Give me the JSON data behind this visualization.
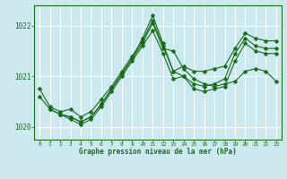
{
  "title": "Graphe pression niveau de la mer (hPa)",
  "bg_color": "#cce9f0",
  "grid_color": "#ffffff",
  "line_color": "#1a6b1a",
  "xlim": [
    -0.5,
    23.5
  ],
  "ylim": [
    1019.75,
    1022.4
  ],
  "yticks": [
    1020,
    1021,
    1022
  ],
  "xticks": [
    0,
    1,
    2,
    3,
    4,
    5,
    6,
    7,
    8,
    9,
    10,
    11,
    12,
    13,
    14,
    15,
    16,
    17,
    18,
    19,
    20,
    21,
    22,
    23
  ],
  "lines": [
    {
      "x": [
        0,
        1,
        2,
        3,
        4,
        5,
        6,
        7,
        8,
        9,
        10,
        11,
        12,
        13,
        14,
        15,
        16,
        17,
        18,
        19,
        20,
        21,
        22,
        23
      ],
      "y": [
        1020.75,
        1020.4,
        1020.3,
        1020.35,
        1020.2,
        1020.3,
        1020.55,
        1020.8,
        1021.1,
        1021.4,
        1021.7,
        1022.1,
        1021.6,
        1021.1,
        1021.2,
        1021.1,
        1021.1,
        1021.15,
        1021.2,
        1021.55,
        1021.85,
        1021.75,
        1021.7,
        1021.7
      ]
    },
    {
      "x": [
        0,
        1,
        2,
        3,
        4,
        5,
        6,
        7,
        8,
        9,
        10,
        11,
        12,
        13,
        14,
        15,
        16,
        17,
        18,
        19,
        20,
        21,
        22,
        23
      ],
      "y": [
        1020.6,
        1020.35,
        1020.25,
        1020.2,
        1020.1,
        1020.2,
        1020.45,
        1020.75,
        1021.05,
        1021.35,
        1021.75,
        1022.2,
        1021.65,
        1021.1,
        1021.0,
        1020.85,
        1020.8,
        1020.85,
        1020.95,
        1021.45,
        1021.75,
        1021.6,
        1021.55,
        1021.55
      ]
    },
    {
      "x": [
        1,
        2,
        3,
        4,
        5,
        6,
        7,
        8,
        9,
        10,
        11,
        12,
        13,
        14,
        15,
        16,
        17,
        18,
        19,
        20,
        21,
        22,
        23
      ],
      "y": [
        1020.35,
        1020.25,
        1020.2,
        1020.1,
        1020.2,
        1020.45,
        1020.75,
        1021.05,
        1021.35,
        1021.65,
        1022.05,
        1021.55,
        1021.5,
        1021.15,
        1020.95,
        1020.85,
        1020.8,
        1020.85,
        1020.9,
        1021.1,
        1021.15,
        1021.1,
        1020.9
      ]
    },
    {
      "x": [
        2,
        3,
        4,
        5,
        6,
        7,
        8,
        9,
        10,
        11,
        12,
        13,
        14,
        15,
        16,
        17,
        18,
        19,
        20,
        21,
        22,
        23
      ],
      "y": [
        1020.25,
        1020.15,
        1020.05,
        1020.15,
        1020.4,
        1020.7,
        1021.0,
        1021.3,
        1021.6,
        1021.9,
        1021.45,
        1020.95,
        1021.0,
        1020.75,
        1020.7,
        1020.75,
        1020.8,
        1021.3,
        1021.65,
        1021.5,
        1021.45,
        1021.45
      ]
    }
  ]
}
